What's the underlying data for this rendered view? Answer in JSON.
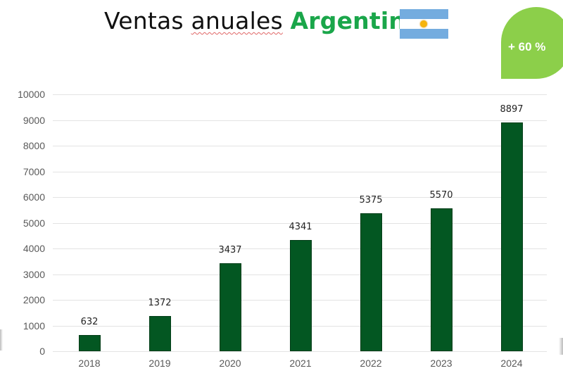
{
  "header": {
    "title_part1": "Ventas",
    "title_part2": "anuales",
    "title_accent": "Argentina",
    "flag_icon": "argentina-flag-icon",
    "badge": "+ 60 %"
  },
  "colors": {
    "bar": "#035722",
    "accent_text": "#1aa64a",
    "badge": "#8ccf4a",
    "flag_blue": "#74acdf",
    "flag_sun": "#f6b40e"
  },
  "chart_data": {
    "type": "bar",
    "title": "Ventas anuales Argentina",
    "categories": [
      "2018",
      "2019",
      "2020",
      "2021",
      "2022",
      "2023",
      "2024"
    ],
    "values": [
      632,
      1372,
      3437,
      4341,
      5375,
      5570,
      8897
    ],
    "data_labels": [
      "632",
      "1372",
      "3437",
      "4341",
      "5375",
      "5570",
      "8897"
    ],
    "xlabel": "",
    "ylabel": "",
    "ylim": [
      0,
      10000
    ],
    "yticks": [
      "0",
      "1000",
      "2000",
      "3000",
      "4000",
      "5000",
      "6000",
      "7000",
      "8000",
      "9000",
      "10000"
    ],
    "grid": true,
    "legend": null,
    "annotation": "+ 60 %"
  }
}
